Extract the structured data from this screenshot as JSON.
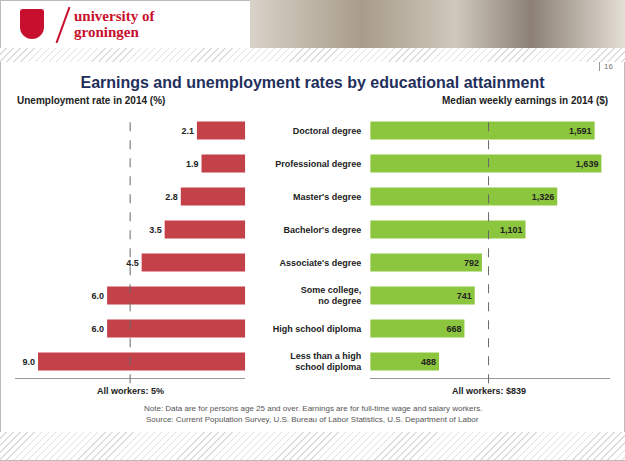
{
  "header": {
    "logo": "university of groningen",
    "page": "16"
  },
  "title": "Earnings and unemployment rates by educational attainment",
  "note": "Note: Data are for persons age 25 and over. Earnings are for full-time wage and salary workers.",
  "source": "Source: Current Population Survey, U.S. Bureau of Labor Statistics, U.S. Department of Labor",
  "chart_data": [
    {
      "type": "bar",
      "orientation": "horizontal",
      "title": "Unemployment rate in 2014 (%)",
      "categories": [
        "Doctoral degree",
        "Professional degree",
        "Master's degree",
        "Bachelor's degree",
        "Associate's degree",
        "Some college, no degree",
        "High school diploma",
        "Less than a high school diploma"
      ],
      "values": [
        2.1,
        1.9,
        2.8,
        3.5,
        4.5,
        6.0,
        6.0,
        9.0
      ],
      "value_labels": [
        "2.1",
        "1.9",
        "2.8",
        "3.5",
        "4.5",
        "6.0",
        "6.0",
        "9.0"
      ],
      "color": "#c4414a",
      "xlim": [
        0,
        10
      ],
      "xticks": [],
      "reference": {
        "value": 5,
        "label": "All workers: 5%"
      },
      "data_labels": true,
      "grid": false,
      "tick_labels": false
    },
    {
      "type": "bar",
      "orientation": "horizontal",
      "title": "Median weekly earnings in 2014 ($)",
      "categories": [
        "Doctoral degree",
        "Professional degree",
        "Master's degree",
        "Bachelor's degree",
        "Associate's degree",
        "Some college, no degree",
        "High school diploma",
        "Less than a high school diploma"
      ],
      "values": [
        1591,
        1639,
        1326,
        1101,
        792,
        741,
        668,
        488
      ],
      "value_labels": [
        "1,591",
        "1,639",
        "1,326",
        "1,101",
        "792",
        "741",
        "668",
        "488"
      ],
      "color": "#8cc63e",
      "xlim": [
        0,
        1700
      ],
      "xticks": [],
      "reference": {
        "value": 839,
        "label": "All workers: $839"
      },
      "data_labels": true,
      "grid": false,
      "tick_labels": "y"
    }
  ]
}
